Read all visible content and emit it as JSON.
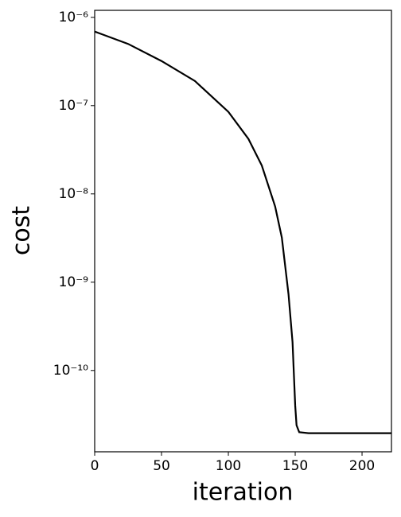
{
  "chart_data": {
    "type": "line",
    "xlabel": "iteration",
    "ylabel": "cost",
    "x": [
      0,
      25,
      50,
      75,
      100,
      115,
      125,
      135,
      140,
      145,
      148,
      150,
      151,
      153,
      160,
      222
    ],
    "series": [
      {
        "color": "#000000",
        "values": [
          6.9e-07,
          5e-07,
          3.2e-07,
          1.9e-07,
          8.5e-08,
          4.2e-08,
          2.1e-08,
          7.2e-09,
          3.2e-09,
          7.3e-10,
          2.1e-10,
          4e-11,
          2.4e-11,
          2e-11,
          1.95e-11,
          1.95e-11
        ]
      }
    ],
    "xlim": [
      0,
      222
    ],
    "xticks": [
      0,
      50,
      100,
      150,
      200
    ],
    "ylim": [
      1.2e-11,
      1.2e-06
    ],
    "yscale": "log",
    "yticks": [
      {
        "value": 1e-10,
        "label": "10⁻¹⁰"
      },
      {
        "value": 1e-09,
        "label": "10⁻⁹"
      },
      {
        "value": 1e-08,
        "label": "10⁻⁸"
      },
      {
        "value": 1e-07,
        "label": "10⁻⁷"
      },
      {
        "value": 1e-06,
        "label": "10⁻⁶"
      }
    ],
    "grid": false
  }
}
